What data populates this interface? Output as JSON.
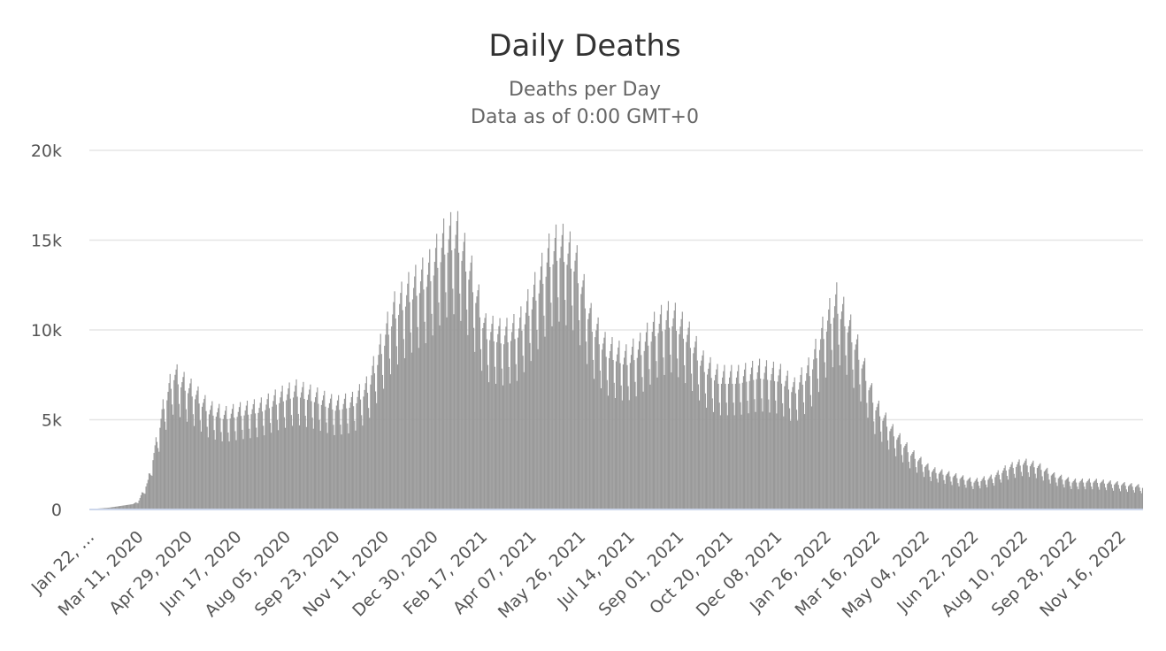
{
  "chart_data": {
    "type": "bar",
    "title": "Daily Deaths",
    "subtitle_lines": [
      "Deaths per Day",
      "Data as of 0:00 GMT+0"
    ],
    "xlabel": "",
    "ylabel": "",
    "x_start_date": "2020-01-22",
    "x_end_date": "2022-12-07",
    "ylim": [
      0,
      20000
    ],
    "y_ticks": [
      {
        "value": 0,
        "label": "0"
      },
      {
        "value": 5000,
        "label": "5k"
      },
      {
        "value": 10000,
        "label": "10k"
      },
      {
        "value": 15000,
        "label": "15k"
      },
      {
        "value": 20000,
        "label": "20k"
      }
    ],
    "x_tick_labels": [
      {
        "date": "2020-01-22",
        "label": "Jan 22, …"
      },
      {
        "date": "2020-03-11",
        "label": "Mar 11, 2020"
      },
      {
        "date": "2020-04-29",
        "label": "Apr 29, 2020"
      },
      {
        "date": "2020-06-17",
        "label": "Jun 17, 2020"
      },
      {
        "date": "2020-08-05",
        "label": "Aug 05, 2020"
      },
      {
        "date": "2020-09-23",
        "label": "Sep 23, 2020"
      },
      {
        "date": "2020-11-11",
        "label": "Nov 11, 2020"
      },
      {
        "date": "2020-12-30",
        "label": "Dec 30, 2020"
      },
      {
        "date": "2021-02-17",
        "label": "Feb 17, 2021"
      },
      {
        "date": "2021-04-07",
        "label": "Apr 07, 2021"
      },
      {
        "date": "2021-05-26",
        "label": "May 26, 2021"
      },
      {
        "date": "2021-07-14",
        "label": "Jul 14, 2021"
      },
      {
        "date": "2021-09-01",
        "label": "Sep 01, 2021"
      },
      {
        "date": "2021-10-20",
        "label": "Oct 20, 2021"
      },
      {
        "date": "2021-12-08",
        "label": "Dec 08, 2021"
      },
      {
        "date": "2022-01-26",
        "label": "Jan 26, 2022"
      },
      {
        "date": "2022-03-16",
        "label": "Mar 16, 2022"
      },
      {
        "date": "2022-05-04",
        "label": "May 04, 2022"
      },
      {
        "date": "2022-06-22",
        "label": "Jun 22, 2022"
      },
      {
        "date": "2022-08-10",
        "label": "Aug 10, 2022"
      },
      {
        "date": "2022-09-28",
        "label": "Sep 28, 2022"
      },
      {
        "date": "2022-11-16",
        "label": "Nov 16, 2022"
      }
    ],
    "series": [
      {
        "color": "#999999",
        "weekday_pattern": [
          1.0,
          1.05,
          1.1,
          1.15,
          1.0,
          0.85,
          0.75
        ],
        "daily_anchor_points": [
          [
            "2020-01-22",
            17
          ],
          [
            "2020-02-10",
            100
          ],
          [
            "2020-03-05",
            300
          ],
          [
            "2020-03-11",
            500
          ],
          [
            "2020-03-20",
            1500
          ],
          [
            "2020-03-28",
            3500
          ],
          [
            "2020-04-05",
            5600
          ],
          [
            "2020-04-15",
            7200
          ],
          [
            "2020-04-22",
            6800
          ],
          [
            "2020-05-05",
            6200
          ],
          [
            "2020-05-20",
            5300
          ],
          [
            "2020-06-05",
            5000
          ],
          [
            "2020-06-20",
            5200
          ],
          [
            "2020-07-10",
            5400
          ],
          [
            "2020-08-01",
            6000
          ],
          [
            "2020-08-15",
            6300
          ],
          [
            "2020-09-01",
            6000
          ],
          [
            "2020-09-23",
            5500
          ],
          [
            "2020-10-10",
            5700
          ],
          [
            "2020-10-25",
            6500
          ],
          [
            "2020-11-05",
            8200
          ],
          [
            "2020-11-20",
            10500
          ],
          [
            "2020-12-05",
            11500
          ],
          [
            "2020-12-25",
            12500
          ],
          [
            "2021-01-10",
            14200
          ],
          [
            "2021-01-22",
            14600
          ],
          [
            "2021-02-05",
            12500
          ],
          [
            "2021-02-20",
            9500
          ],
          [
            "2021-03-10",
            9200
          ],
          [
            "2021-03-25",
            9600
          ],
          [
            "2021-04-10",
            11500
          ],
          [
            "2021-04-25",
            13500
          ],
          [
            "2021-05-05",
            14000
          ],
          [
            "2021-05-20",
            13200
          ],
          [
            "2021-06-05",
            10000
          ],
          [
            "2021-06-20",
            8500
          ],
          [
            "2021-07-10",
            8000
          ],
          [
            "2021-07-25",
            8600
          ],
          [
            "2021-08-10",
            9800
          ],
          [
            "2021-08-25",
            10200
          ],
          [
            "2021-09-10",
            9200
          ],
          [
            "2021-09-25",
            7700
          ],
          [
            "2021-10-10",
            7000
          ],
          [
            "2021-10-30",
            7000
          ],
          [
            "2021-11-20",
            7300
          ],
          [
            "2021-12-10",
            7100
          ],
          [
            "2021-12-25",
            6400
          ],
          [
            "2022-01-10",
            7500
          ],
          [
            "2022-01-25",
            9800
          ],
          [
            "2022-02-05",
            11000
          ],
          [
            "2022-02-15",
            10000
          ],
          [
            "2022-02-28",
            8200
          ],
          [
            "2022-03-15",
            5600
          ],
          [
            "2022-04-01",
            4200
          ],
          [
            "2022-04-20",
            3000
          ],
          [
            "2022-05-10",
            2100
          ],
          [
            "2022-06-01",
            1800
          ],
          [
            "2022-06-22",
            1500
          ],
          [
            "2022-07-10",
            1700
          ],
          [
            "2022-07-25",
            2200
          ],
          [
            "2022-08-10",
            2500
          ],
          [
            "2022-08-25",
            2300
          ],
          [
            "2022-09-10",
            1800
          ],
          [
            "2022-09-28",
            1500
          ],
          [
            "2022-10-20",
            1500
          ],
          [
            "2022-11-16",
            1350
          ],
          [
            "2022-12-07",
            1200
          ]
        ]
      }
    ],
    "grid": true,
    "legend": "none"
  }
}
